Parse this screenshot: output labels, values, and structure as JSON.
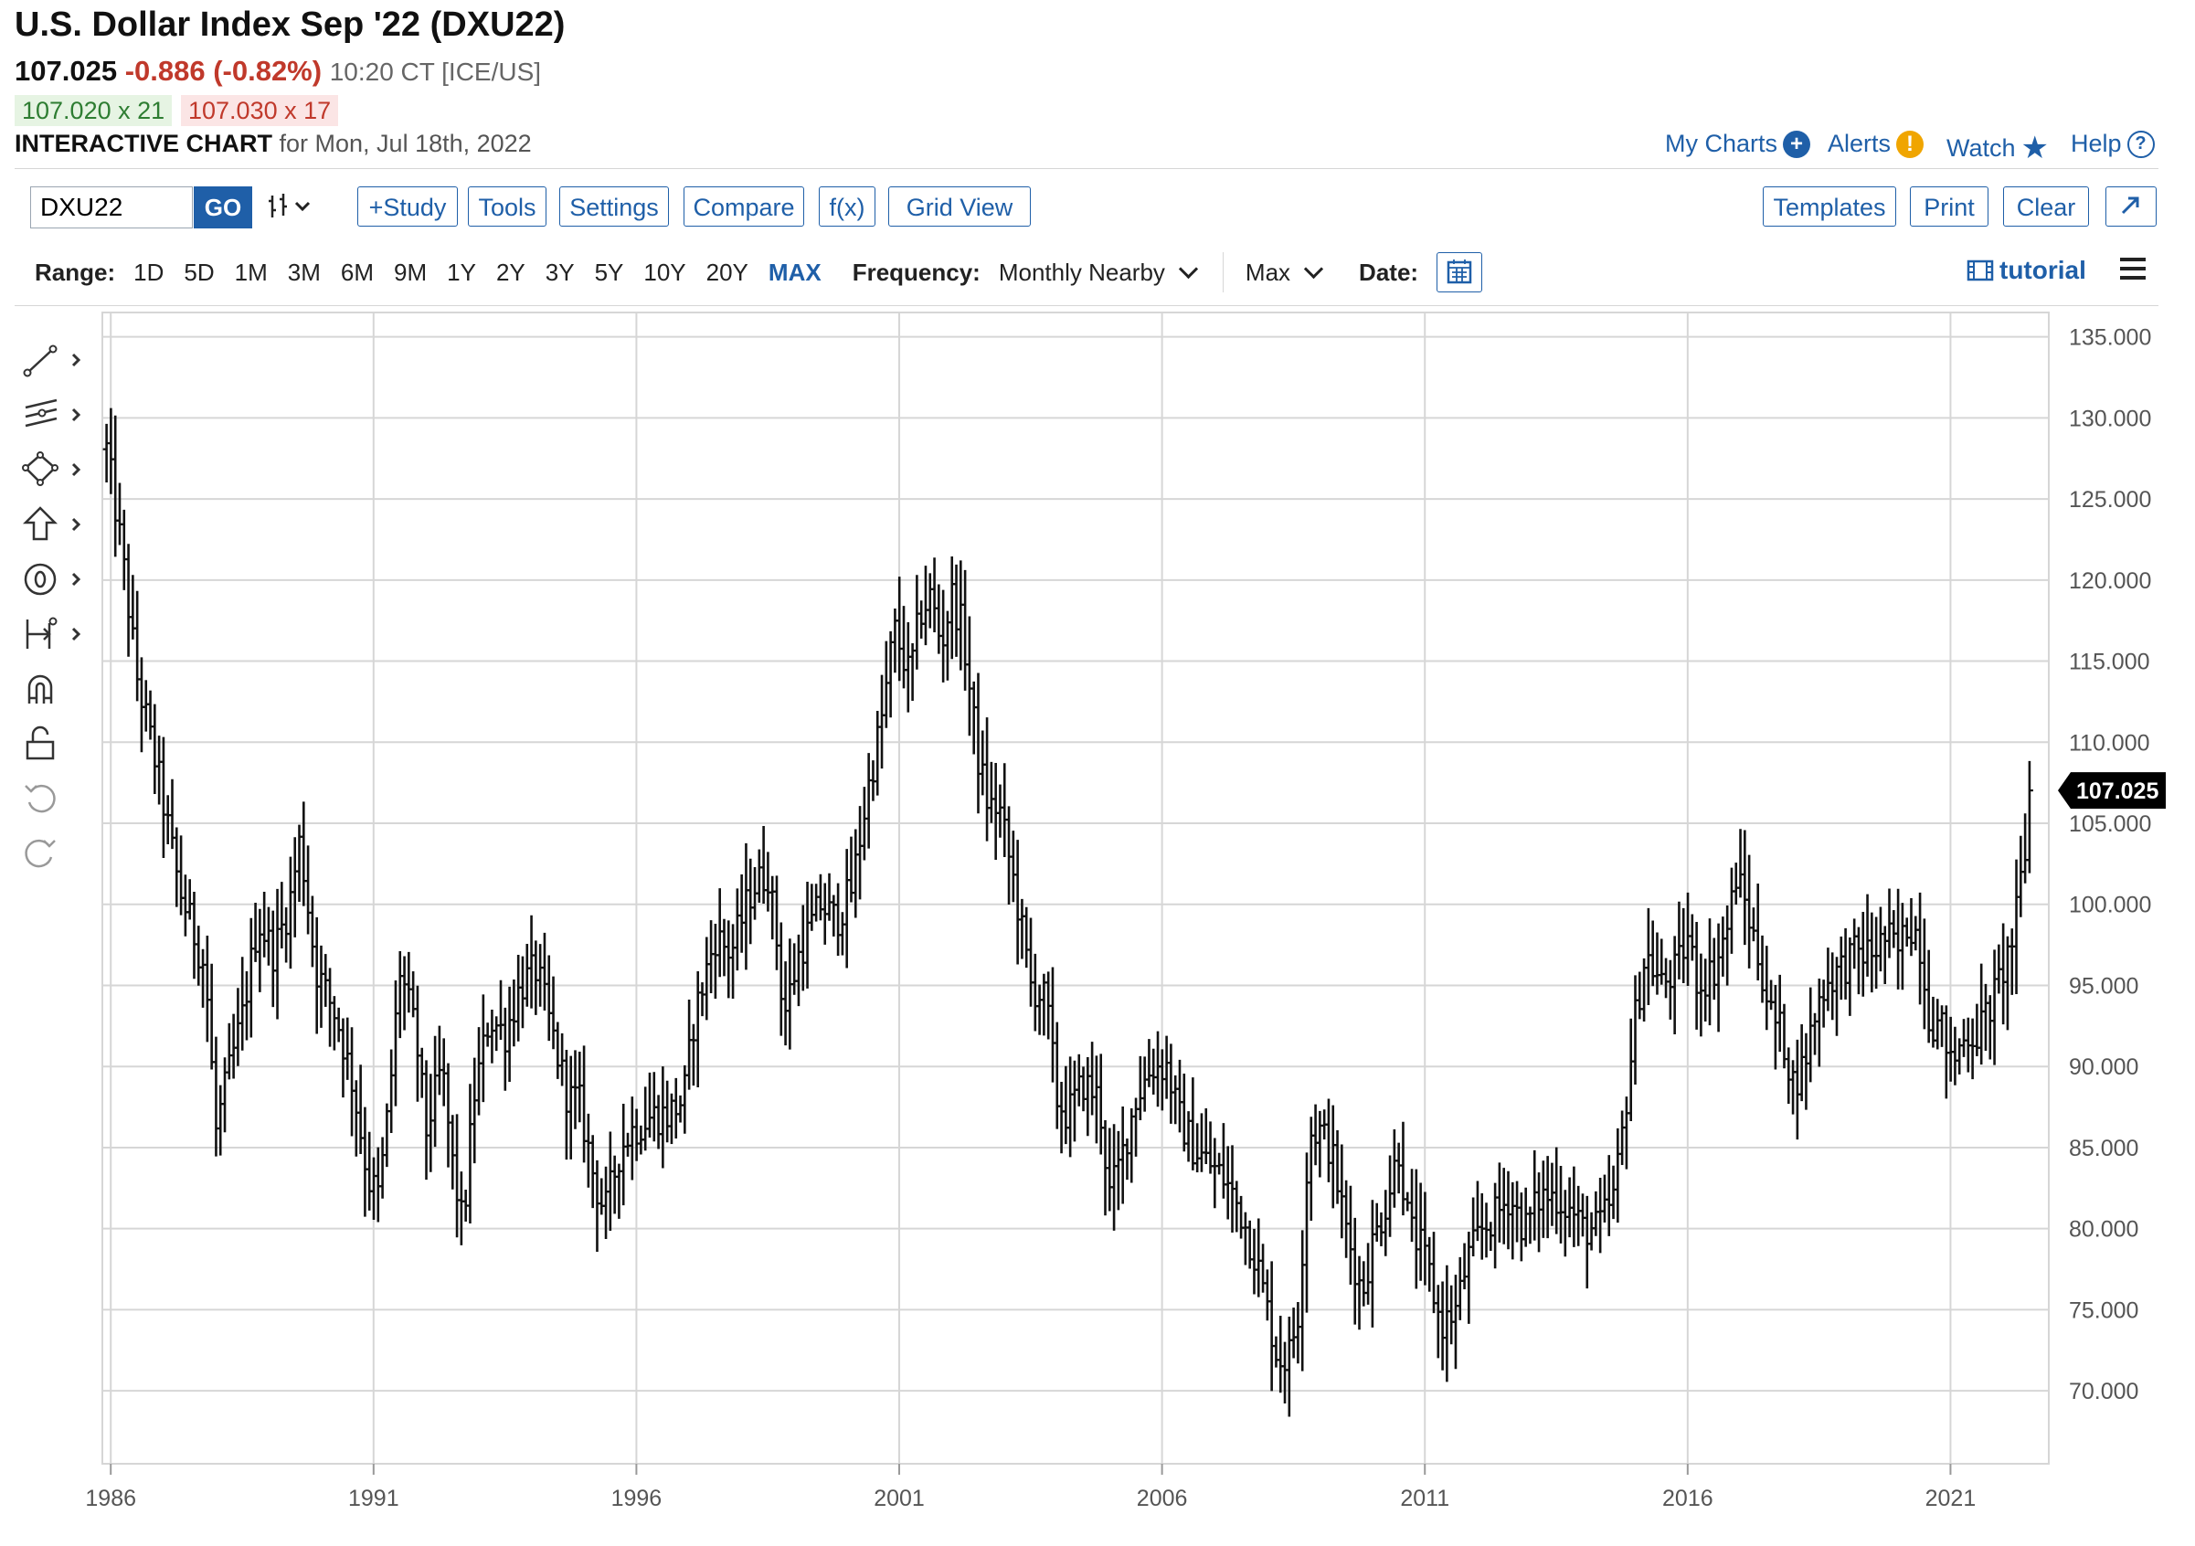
{
  "header": {
    "title": "U.S. Dollar Index Sep '22 (DXU22)",
    "last": "107.025",
    "change": "-0.886 (-0.82%)",
    "time": "10:20 CT [ICE/US]",
    "bid": "107.020 x 21",
    "ask": "107.030 x 17",
    "chart_label": "INTERACTIVE CHART",
    "chart_for": "for Mon, Jul 18th, 2022"
  },
  "top_links": {
    "my_charts": "My Charts",
    "alerts": "Alerts",
    "watch": "Watch",
    "help": "Help"
  },
  "toolbar": {
    "symbol": "DXU22",
    "go": "GO",
    "study": "+Study",
    "tools": "Tools",
    "settings": "Settings",
    "compare": "Compare",
    "fx": "f(x)",
    "grid_view": "Grid View",
    "templates": "Templates",
    "print": "Print",
    "clear": "Clear"
  },
  "rangebar": {
    "range_label": "Range:",
    "ranges": [
      "1D",
      "5D",
      "1M",
      "3M",
      "6M",
      "9M",
      "1Y",
      "2Y",
      "3Y",
      "5Y",
      "10Y",
      "20Y",
      "MAX"
    ],
    "active_range": "MAX",
    "frequency_label": "Frequency:",
    "frequency": "Monthly Nearby",
    "max_select": "Max",
    "date_label": "Date:",
    "tutorial": "tutorial"
  },
  "colors": {
    "accent": "#1f5fa8",
    "down": "#c0392b",
    "up": "#2e7d32",
    "bars": "#111111",
    "grid": "#d6d6d6"
  },
  "chart_data": {
    "type": "ohlc",
    "title": "U.S. Dollar Index Sep '22 (DXU22)",
    "frequency": "Monthly Nearby",
    "x_tick_labels": [
      "1986",
      "1991",
      "1996",
      "2001",
      "2006",
      "2011",
      "2016",
      "2021"
    ],
    "y_tick_labels": [
      "135.000",
      "130.000",
      "125.000",
      "120.000",
      "115.000",
      "110.000",
      "105.000",
      "100.000",
      "95.000",
      "90.000",
      "85.000",
      "80.000",
      "75.000",
      "70.000"
    ],
    "ylim": [
      65.5,
      136.5
    ],
    "xlim": [
      1985.84,
      2022.87
    ],
    "grid": true,
    "last_price_label": "107.025",
    "last_price": 107.025,
    "anchors_note": "approximate monthly closes read from chart",
    "anchors": [
      [
        1985.9,
        128.5
      ],
      [
        1986.2,
        122
      ],
      [
        1986.5,
        114
      ],
      [
        1986.9,
        108
      ],
      [
        1987.3,
        101
      ],
      [
        1987.8,
        96
      ],
      [
        1988.0,
        86
      ],
      [
        1988.2,
        89
      ],
      [
        1988.5,
        93
      ],
      [
        1988.8,
        99
      ],
      [
        1989.1,
        97
      ],
      [
        1989.4,
        100
      ],
      [
        1989.6,
        104
      ],
      [
        1989.9,
        96
      ],
      [
        1990.3,
        93
      ],
      [
        1990.6,
        89
      ],
      [
        1990.9,
        83
      ],
      [
        1991.1,
        82
      ],
      [
        1991.3,
        88
      ],
      [
        1991.5,
        96
      ],
      [
        1991.8,
        92
      ],
      [
        1992.0,
        86
      ],
      [
        1992.3,
        90
      ],
      [
        1992.5,
        84
      ],
      [
        1992.7,
        80
      ],
      [
        1992.9,
        88
      ],
      [
        1993.2,
        93
      ],
      [
        1993.5,
        92
      ],
      [
        1993.8,
        95
      ],
      [
        1994.1,
        96
      ],
      [
        1994.4,
        92
      ],
      [
        1994.7,
        88
      ],
      [
        1994.9,
        88
      ],
      [
        1995.2,
        83
      ],
      [
        1995.4,
        81
      ],
      [
        1995.7,
        85
      ],
      [
        1995.9,
        86
      ],
      [
        1996.3,
        87
      ],
      [
        1996.6,
        87
      ],
      [
        1996.9,
        88
      ],
      [
        1997.1,
        93
      ],
      [
        1997.5,
        98
      ],
      [
        1997.8,
        97
      ],
      [
        1998.2,
        101
      ],
      [
        1998.5,
        102
      ],
      [
        1998.7,
        97
      ],
      [
        1998.8,
        93
      ],
      [
        1999.1,
        97
      ],
      [
        1999.5,
        100
      ],
      [
        1999.8,
        99
      ],
      [
        2000.1,
        101
      ],
      [
        2000.4,
        107
      ],
      [
        2000.7,
        112
      ],
      [
        2000.9,
        117
      ],
      [
        2001.2,
        114
      ],
      [
        2001.4,
        118
      ],
      [
        2001.6,
        119
      ],
      [
        2001.8,
        116
      ],
      [
        2002.0,
        119
      ],
      [
        2002.2,
        117
      ],
      [
        2002.5,
        109
      ],
      [
        2002.7,
        106
      ],
      [
        2002.9,
        106
      ],
      [
        2003.2,
        101
      ],
      [
        2003.5,
        95
      ],
      [
        2003.8,
        94
      ],
      [
        2004.0,
        88
      ],
      [
        2004.2,
        87
      ],
      [
        2004.5,
        89
      ],
      [
        2004.8,
        88
      ],
      [
        2005.0,
        82
      ],
      [
        2005.2,
        84
      ],
      [
        2005.5,
        88
      ],
      [
        2005.8,
        90
      ],
      [
        2006.1,
        90
      ],
      [
        2006.3,
        87
      ],
      [
        2006.6,
        85
      ],
      [
        2006.9,
        84
      ],
      [
        2007.2,
        83
      ],
      [
        2007.5,
        81
      ],
      [
        2007.8,
        78
      ],
      [
        2008.0,
        75
      ],
      [
        2008.2,
        72
      ],
      [
        2008.4,
        72
      ],
      [
        2008.6,
        75
      ],
      [
        2008.8,
        86
      ],
      [
        2009.0,
        86
      ],
      [
        2009.2,
        85
      ],
      [
        2009.5,
        80
      ],
      [
        2009.8,
        76
      ],
      [
        2010.0,
        79
      ],
      [
        2010.3,
        82
      ],
      [
        2010.5,
        85
      ],
      [
        2010.7,
        80
      ],
      [
        2010.9,
        79
      ],
      [
        2011.1,
        77
      ],
      [
        2011.3,
        74
      ],
      [
        2011.6,
        75
      ],
      [
        2011.8,
        78
      ],
      [
        2012.1,
        80
      ],
      [
        2012.4,
        81
      ],
      [
        2012.6,
        82
      ],
      [
        2012.9,
        80
      ],
      [
        2013.2,
        82
      ],
      [
        2013.5,
        82
      ],
      [
        2013.8,
        81
      ],
      [
        2014.0,
        80
      ],
      [
        2014.3,
        80
      ],
      [
        2014.6,
        82
      ],
      [
        2014.8,
        87
      ],
      [
        2015.0,
        93
      ],
      [
        2015.2,
        97
      ],
      [
        2015.5,
        95
      ],
      [
        2015.8,
        96
      ],
      [
        2016.0,
        98
      ],
      [
        2016.2,
        95
      ],
      [
        2016.5,
        96
      ],
      [
        2016.8,
        99
      ],
      [
        2016.9,
        102
      ],
      [
        2017.1,
        100
      ],
      [
        2017.4,
        96
      ],
      [
        2017.6,
        93
      ],
      [
        2017.8,
        92
      ],
      [
        2018.0,
        89
      ],
      [
        2018.2,
        90
      ],
      [
        2018.4,
        93
      ],
      [
        2018.6,
        95
      ],
      [
        2018.9,
        96
      ],
      [
        2019.2,
        97
      ],
      [
        2019.5,
        97
      ],
      [
        2019.8,
        98
      ],
      [
        2020.0,
        97
      ],
      [
        2020.2,
        99
      ],
      [
        2020.4,
        98
      ],
      [
        2020.6,
        93
      ],
      [
        2020.9,
        92
      ],
      [
        2021.0,
        90
      ],
      [
        2021.3,
        92
      ],
      [
        2021.5,
        92
      ],
      [
        2021.8,
        94
      ],
      [
        2022.0,
        96
      ],
      [
        2022.2,
        98
      ],
      [
        2022.4,
        103
      ],
      [
        2022.6,
        105
      ],
      [
        2022.7,
        107.025
      ]
    ]
  }
}
